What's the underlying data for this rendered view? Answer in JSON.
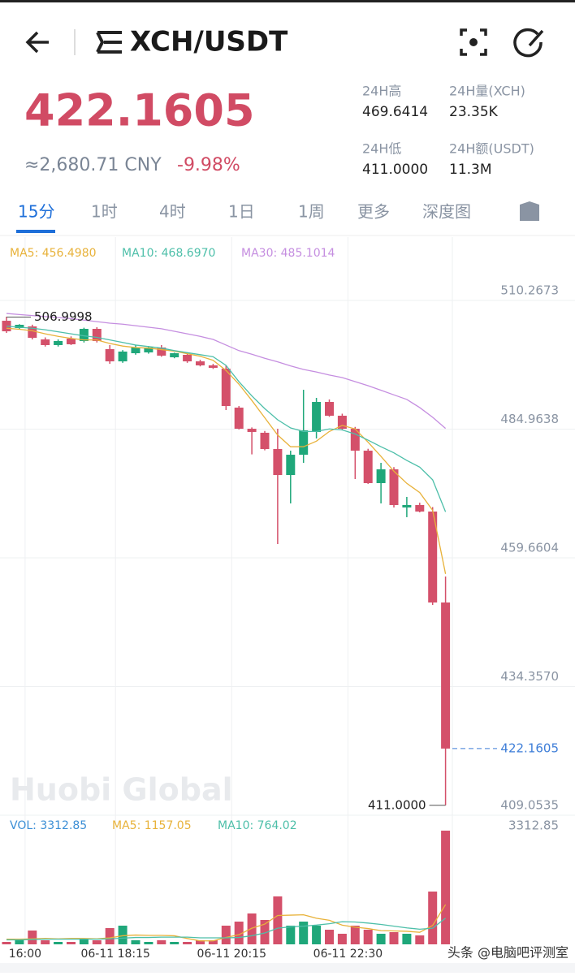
{
  "header": {
    "title": "XCH/USDT"
  },
  "ticker": {
    "price": "422.1605",
    "cny": "≈2,680.71 CNY",
    "change": "-9.98%",
    "stats": [
      {
        "label": "24H高",
        "value": "469.6414"
      },
      {
        "label": "24H量(XCH)",
        "value": "23.35K"
      },
      {
        "label": "24H低",
        "value": "411.0000"
      },
      {
        "label": "24H额(USDT)",
        "value": "11.3M"
      }
    ]
  },
  "tabs": [
    "15分",
    "1时",
    "4时",
    "1日",
    "1周",
    "更多",
    "深度图"
  ],
  "watermark": "头条 @电脑吧评测室",
  "chart_data": [
    {
      "type": "candlestick",
      "watermark": "Huobi Global",
      "up_color": "#1fa77a",
      "down_color": "#d4506a",
      "open": [
        506.27,
        504.84,
        505.16,
        502.6,
        501.49,
        502.76,
        502.29,
        504.68,
        500.69,
        498.29,
        499.89,
        500.05,
        501.01,
        499.09,
        499.57,
        498.29,
        497.5,
        496.86,
        489.19,
        485.04,
        484.25,
        481.05,
        475.94,
        479.93,
        484.41,
        490.31,
        487.6,
        485.04,
        480.73,
        474.35,
        477.06,
        469.56,
        470.04,
        468.76,
        450.88
      ],
      "high": [
        507.07,
        505.6,
        505.5,
        503.0,
        502.6,
        503.2,
        504.9,
        505.0,
        501.5,
        500.5,
        501.5,
        501.3,
        501.5,
        500.0,
        500.0,
        498.6,
        497.8,
        497.5,
        489.5,
        485.3,
        484.6,
        485.04,
        480.73,
        492.7,
        491.11,
        490.8,
        488.0,
        485.4,
        481.1,
        478.34,
        477.5,
        471.64,
        470.5,
        469.64,
        455.99
      ],
      "low": [
        503.88,
        504.6,
        502.6,
        501.2,
        501.2,
        501.5,
        502.0,
        502.0,
        497.8,
        498.0,
        499.6,
        499.8,
        499.2,
        498.9,
        498.0,
        497.3,
        496.8,
        488.72,
        484.9,
        480.0,
        480.8,
        462.38,
        470.36,
        478.34,
        483.13,
        487.4,
        484.8,
        475.15,
        474.2,
        470.36,
        469.56,
        467.65,
        468.6,
        450.4,
        411.0
      ],
      "close": [
        504.2,
        505.48,
        502.92,
        501.49,
        502.29,
        501.65,
        504.68,
        502.29,
        498.29,
        500.21,
        501.01,
        501.01,
        499.41,
        499.89,
        498.29,
        497.5,
        497.02,
        489.51,
        485.04,
        484.41,
        481.05,
        475.94,
        479.93,
        484.73,
        490.31,
        487.6,
        485.04,
        480.73,
        474.35,
        477.06,
        470.04,
        470.04,
        468.76,
        450.88,
        422.1605
      ],
      "series": [
        {
          "name": "MA5: 456.4980",
          "color": "#e8b23a",
          "values": [
            504.8,
            504.6,
            504.3,
            503.7,
            503.2,
            502.8,
            502.5,
            502.5,
            501.8,
            501.3,
            501.0,
            500.9,
            500.6,
            500.3,
            499.8,
            499.3,
            498.5,
            496.5,
            493.8,
            490.6,
            487.2,
            483.8,
            481.5,
            481.5,
            482.6,
            484.5,
            485.7,
            485.0,
            482.4,
            479.6,
            476.7,
            474.3,
            472.5,
            469.0,
            456.498
          ]
        },
        {
          "name": "MA10: 468.6970",
          "color": "#4dbfa9",
          "values": [
            505.2,
            505.0,
            504.8,
            504.5,
            504.1,
            503.7,
            503.3,
            503.0,
            502.5,
            502.0,
            501.5,
            501.2,
            500.9,
            500.4,
            500.0,
            499.6,
            499.2,
            497.5,
            494.3,
            491.5,
            489.0,
            486.8,
            485.2,
            484.5,
            484.5,
            485.0,
            484.8,
            484.0,
            482.8,
            481.5,
            480.3,
            478.8,
            477.5,
            475.0,
            468.697
          ]
        },
        {
          "name": "MA30: 485.1014",
          "color": "#c58ee0",
          "values": [
            507.7,
            507.5,
            507.3,
            507.1,
            506.9,
            506.7,
            506.4,
            506.1,
            505.8,
            505.6,
            505.3,
            505.0,
            504.7,
            504.2,
            503.7,
            503.2,
            502.6,
            501.5,
            500.4,
            499.7,
            498.9,
            498.2,
            497.4,
            496.7,
            496.2,
            495.6,
            495.1,
            494.3,
            493.5,
            492.6,
            491.7,
            490.8,
            489.2,
            487.3,
            485.1014
          ]
        }
      ],
      "ylim": [
        409.0535,
        522.72
      ],
      "yticks": [
        510.2673,
        484.9638,
        459.6604,
        {
          "value": 434.357,
          "label": "434.3570"
        },
        409.0535
      ],
      "max_marker": 506.9998,
      "min_marker": {
        "value": 411,
        "label": "411.0000"
      },
      "last_price": 422.1605,
      "last_price_color": "#3e7ed8",
      "grid": true
    },
    {
      "type": "bar",
      "title": "VOL: 3312.85",
      "categories": [
        null,
        "16:00",
        null,
        null,
        null,
        null,
        null,
        null,
        "06-11 18:15",
        null,
        null,
        null,
        null,
        null,
        null,
        null,
        null,
        "06-11 20:15",
        null,
        null,
        null,
        null,
        null,
        null,
        null,
        null,
        "06-11 22:30",
        null,
        null,
        null,
        null,
        null,
        null,
        null,
        null
      ],
      "values": [
        71,
        118,
        402,
        118,
        71,
        71,
        142,
        118,
        473,
        544,
        118,
        71,
        118,
        71,
        71,
        118,
        118,
        544,
        662,
        899,
        710,
        1396,
        544,
        662,
        544,
        426,
        308,
        544,
        426,
        308,
        355,
        308,
        260,
        1538,
        3312.85
      ],
      "series": [
        {
          "name": "MA5: 1157.05",
          "color": "#e8b23a",
          "values": [
            150,
            150,
            160,
            170,
            160,
            170,
            170,
            160,
            190,
            250,
            270,
            260,
            260,
            250,
            170,
            100,
            100,
            200,
            280,
            470,
            590,
            840,
            850,
            860,
            760,
            700,
            560,
            500,
            460,
            400,
            390,
            380,
            350,
            550,
            1157.05
          ]
        },
        {
          "name": "MA10: 764.02",
          "color": "#4dbfa9",
          "values": [
            130,
            130,
            140,
            150,
            150,
            150,
            150,
            150,
            160,
            180,
            200,
            200,
            210,
            210,
            210,
            190,
            190,
            190,
            200,
            250,
            330,
            470,
            510,
            530,
            560,
            600,
            660,
            650,
            620,
            580,
            530,
            480,
            440,
            470,
            764.02
          ]
        }
      ],
      "title_color": "#3c8fd6",
      "ylim": [
        0,
        3738
      ],
      "yticks": [
        3312.85
      ]
    }
  ]
}
